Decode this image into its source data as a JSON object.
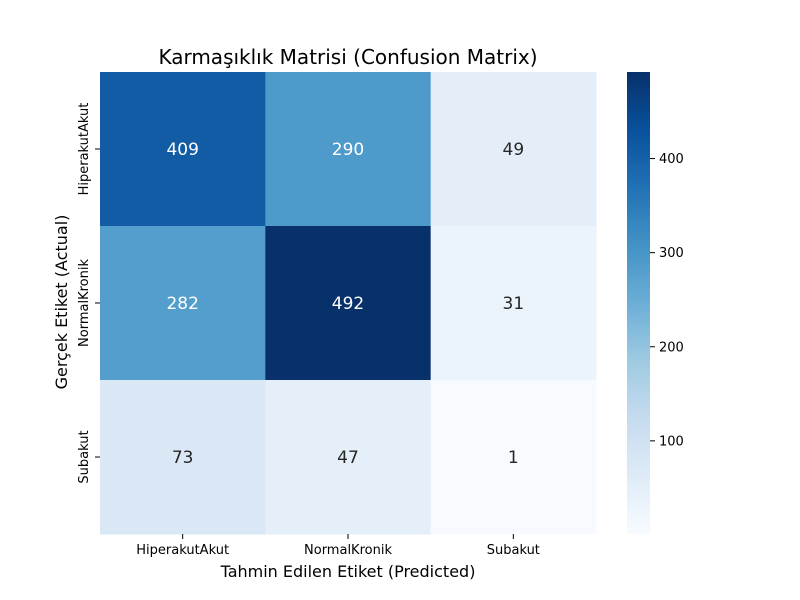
{
  "chart_data": {
    "type": "heatmap",
    "title": "Karmaşıklık Matrisi (Confusion Matrix)",
    "xlabel": "Tahmin Edilen Etiket (Predicted)",
    "ylabel": "Gerçek Etiket (Actual)",
    "x_categories": [
      "HiperakutAkut",
      "NormalKronik",
      "Subakut"
    ],
    "y_categories": [
      "HiperakutAkut",
      "NormalKronik",
      "Subakut"
    ],
    "values": [
      [
        409,
        290,
        49
      ],
      [
        282,
        492,
        31
      ],
      [
        73,
        47,
        1
      ]
    ],
    "colormap": "Blues",
    "color_range": [
      1,
      492
    ],
    "colorbar_ticks": [
      100,
      200,
      300,
      400
    ],
    "annotations": true
  }
}
